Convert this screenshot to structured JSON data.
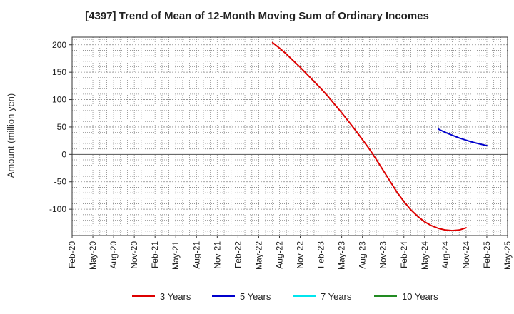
{
  "chart_data": {
    "type": "line",
    "title": "[4397]  Trend of Mean of 12-Month Moving Sum of Ordinary Incomes",
    "ylabel": "Amount (million yen)",
    "xlabel": "",
    "ylim": [
      -148,
      214
    ],
    "yticks": [
      200,
      150,
      100,
      50,
      0,
      -50,
      -100
    ],
    "xtick_labels": [
      "Feb-20",
      "May-20",
      "Aug-20",
      "Nov-20",
      "Feb-21",
      "May-21",
      "Aug-21",
      "Nov-21",
      "Feb-22",
      "May-22",
      "Aug-22",
      "Nov-22",
      "Feb-23",
      "May-23",
      "Aug-23",
      "Nov-23",
      "Feb-24",
      "May-24",
      "Aug-24",
      "Nov-24",
      "Feb-25",
      "May-25"
    ],
    "grid": true,
    "legend_position": "bottom",
    "series": [
      {
        "name": "3 Years",
        "color": "#dd0000",
        "points": [
          [
            "Jul-22",
            204
          ],
          [
            "Aug-22",
            194
          ],
          [
            "Sep-22",
            183
          ],
          [
            "Oct-22",
            171
          ],
          [
            "Nov-22",
            159
          ],
          [
            "Dec-22",
            146
          ],
          [
            "Jan-23",
            133
          ],
          [
            "Feb-23",
            120
          ],
          [
            "Mar-23",
            106
          ],
          [
            "Apr-23",
            91
          ],
          [
            "May-23",
            76
          ],
          [
            "Jun-23",
            60
          ],
          [
            "Jul-23",
            44
          ],
          [
            "Aug-23",
            27
          ],
          [
            "Sep-23",
            10
          ],
          [
            "Oct-23",
            -9
          ],
          [
            "Nov-23",
            -29
          ],
          [
            "Dec-23",
            -49
          ],
          [
            "Jan-24",
            -69
          ],
          [
            "Feb-24",
            -86
          ],
          [
            "Mar-24",
            -101
          ],
          [
            "Apr-24",
            -113
          ],
          [
            "May-24",
            -123
          ],
          [
            "Jun-24",
            -130
          ],
          [
            "Jul-24",
            -135
          ],
          [
            "Aug-24",
            -138
          ],
          [
            "Sep-24",
            -139
          ],
          [
            "Oct-24",
            -138
          ],
          [
            "Nov-24",
            -134
          ]
        ]
      },
      {
        "name": "5 Years",
        "color": "#0000cc",
        "points": [
          [
            "Jul-24",
            46
          ],
          [
            "Aug-24",
            40
          ],
          [
            "Sep-24",
            35
          ],
          [
            "Oct-24",
            30
          ],
          [
            "Nov-24",
            26
          ],
          [
            "Dec-24",
            22
          ],
          [
            "Jan-25",
            19
          ],
          [
            "Feb-25",
            16
          ]
        ]
      },
      {
        "name": "7 Years",
        "color": "#00e5ee",
        "points": []
      },
      {
        "name": "10 Years",
        "color": "#228b22",
        "points": []
      }
    ]
  }
}
